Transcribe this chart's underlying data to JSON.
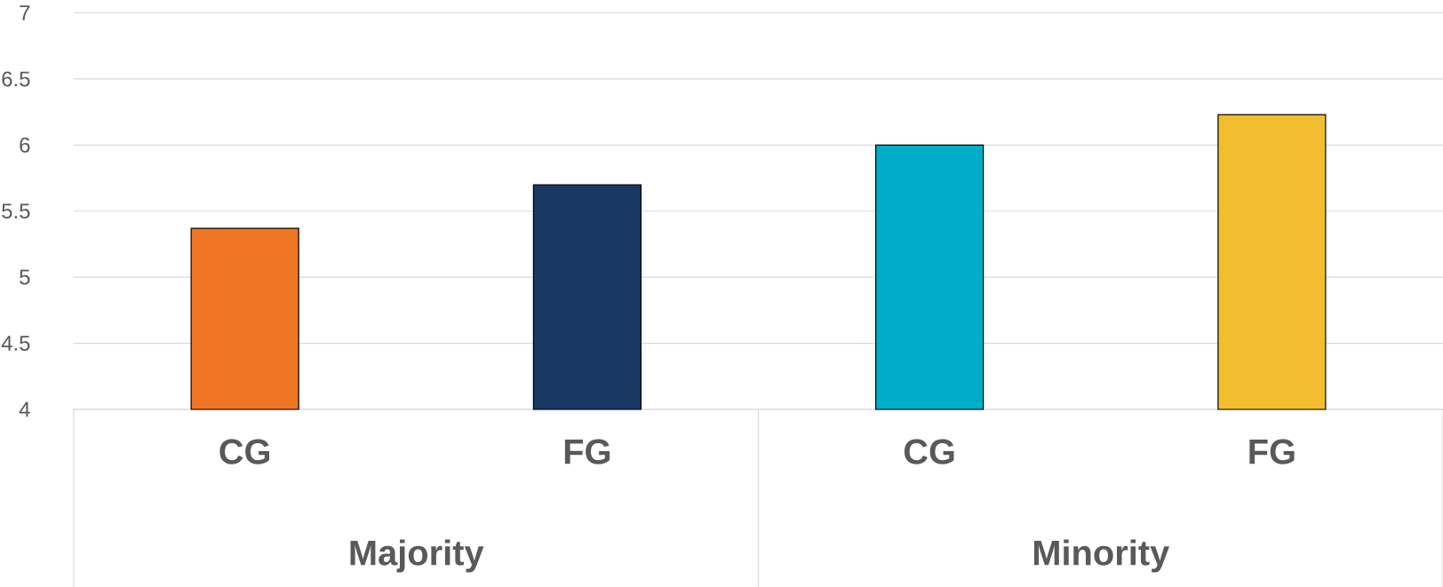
{
  "chart_data": {
    "type": "bar",
    "categories": [
      "CG",
      "FG",
      "CG",
      "FG"
    ],
    "values": [
      5.37,
      5.7,
      6.0,
      6.23
    ],
    "colors": [
      "#ee7623",
      "#183864",
      "#00adc8",
      "#f2be30"
    ],
    "annotations": [
      "Majority",
      "Minority"
    ],
    "ylim": [
      4,
      7
    ],
    "yticks": [
      4,
      4.5,
      5,
      5.5,
      6,
      6.5,
      7
    ],
    "grid": "y"
  }
}
